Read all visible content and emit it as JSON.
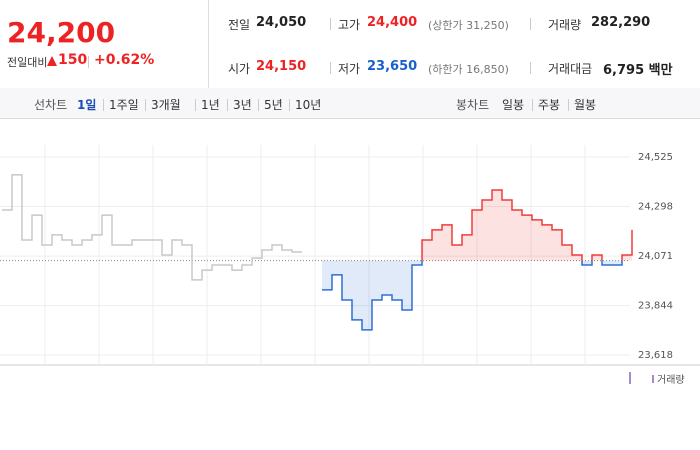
{
  "header": {
    "price": "24,200",
    "change_label": "전일대비",
    "change": "150",
    "change_pct": "+0.62%",
    "items": [
      {
        "label": "전일",
        "value": "24,050"
      },
      {
        "label": "고가",
        "value": "24,400",
        "note": "(상한가 31,250)"
      },
      {
        "label": "거래량",
        "value": "282,290"
      },
      {
        "label": "시가",
        "value": "24,150"
      },
      {
        "label": "저가",
        "value": "23,650",
        "note": "(하한가 16,850)"
      },
      {
        "label": "거래대금",
        "value": "6,795 백만"
      }
    ]
  },
  "tabs": {
    "line_label": "선차트",
    "line_periods": [
      "1일",
      "1주일",
      "3개월",
      "1년",
      "3년",
      "5년",
      "10년"
    ],
    "candle_label": "봉차트",
    "candle_periods": [
      "일봉",
      "주봉",
      "월봉"
    ]
  },
  "chart_data": {
    "type": "line",
    "baseline": 24050,
    "ylim": [
      23572,
      24603
    ],
    "yticks": [
      {
        "value": 24525,
        "label": "24,525"
      },
      {
        "value": 24298,
        "label": "24,298"
      },
      {
        "value": 24071,
        "label": "24,071"
      },
      {
        "value": 23844,
        "label": "23,844"
      },
      {
        "value": 23618,
        "label": "23,618"
      }
    ],
    "legend": "거래량",
    "series": [
      {
        "color": "#c8c8c8",
        "values": [
          24282,
          24443,
          24145,
          24259,
          24122,
          24168,
          24145,
          24122,
          24145,
          24168,
          24259,
          24122,
          24122,
          24145,
          24145,
          24145,
          24076,
          24145,
          24122,
          23962,
          24007,
          24030,
          24030,
          24007,
          24030,
          24062,
          24099,
          24122,
          24099,
          24090,
          24090,
          null,
          null,
          null,
          null,
          null,
          null,
          null,
          null,
          null,
          null,
          null,
          null,
          null,
          null,
          null,
          null,
          null,
          null,
          null,
          null,
          null,
          null,
          null,
          null,
          null,
          null,
          null,
          null,
          null,
          null,
          null,
          null,
          null
        ]
      },
      {
        "color": "#f03c3c",
        "down_color": "#2f6fd6",
        "values": [
          null,
          null,
          null,
          null,
          null,
          null,
          null,
          null,
          null,
          null,
          null,
          null,
          null,
          null,
          null,
          null,
          null,
          null,
          null,
          null,
          null,
          null,
          null,
          null,
          null,
          null,
          null,
          null,
          null,
          null,
          null,
          null,
          23916,
          23985,
          23870,
          23779,
          23733,
          23870,
          23893,
          23870,
          23824,
          24030,
          24145,
          24191,
          24214,
          24122,
          24168,
          24282,
          24328,
          24374,
          24328,
          24282,
          24259,
          24237,
          24214,
          24191,
          24122,
          24076,
          24030,
          24076,
          24030,
          24030,
          24076,
          24191
        ]
      }
    ]
  }
}
